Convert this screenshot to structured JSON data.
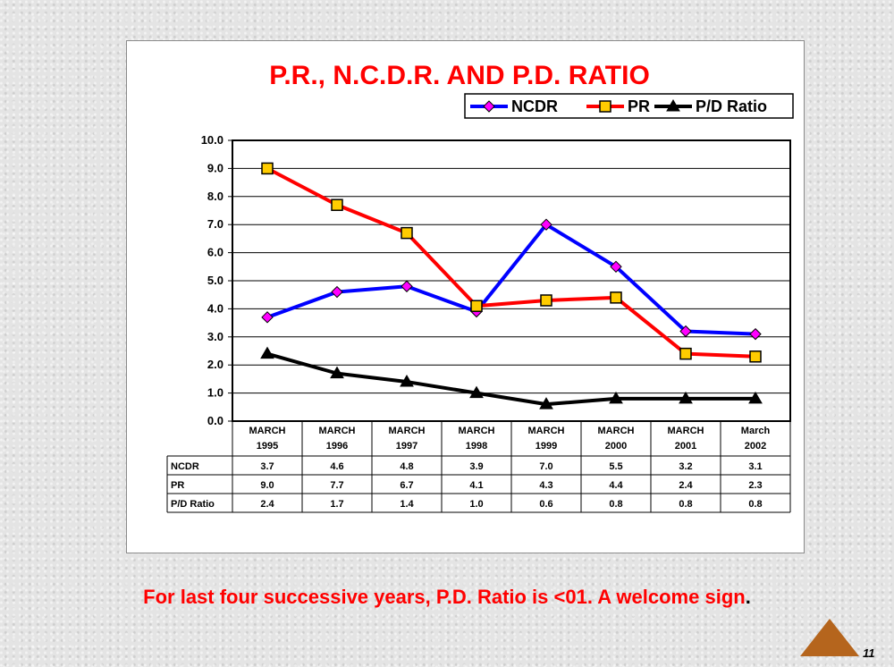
{
  "chart_data": {
    "type": "line",
    "title": "P.R., N.C.D.R. AND P.D. RATIO",
    "categories": [
      [
        "MARCH",
        "1995"
      ],
      [
        "MARCH",
        "1996"
      ],
      [
        "MARCH",
        "1997"
      ],
      [
        "MARCH",
        "1998"
      ],
      [
        "MARCH",
        "1999"
      ],
      [
        "MARCH",
        "2000"
      ],
      [
        "MARCH",
        "2001"
      ],
      [
        "March",
        "2002"
      ]
    ],
    "series": [
      {
        "name": "NCDR",
        "table_label": "NCDR",
        "color": "#0000ff",
        "marker": "diamond",
        "marker_color": "#ff00ff",
        "values": [
          3.7,
          4.6,
          4.8,
          3.9,
          7.0,
          5.5,
          3.2,
          3.1
        ],
        "labels": [
          "3.7",
          "4.6",
          "4.8",
          "3.9",
          "7.0",
          "5.5",
          "3.2",
          "3.1"
        ]
      },
      {
        "name": "PR",
        "table_label": "PR",
        "color": "#ff0000",
        "marker": "square",
        "marker_color": "#ffcc00",
        "values": [
          9.0,
          7.7,
          6.7,
          4.1,
          4.3,
          4.4,
          2.4,
          2.3
        ],
        "labels": [
          "9.0",
          "7.7",
          "6.7",
          "4.1",
          "4.3",
          "4.4",
          "2.4",
          "2.3"
        ]
      },
      {
        "name": "P/D Ratio",
        "table_label": "P/D Ratio",
        "color": "#000000",
        "marker": "triangle",
        "marker_color": "#000000",
        "values": [
          2.4,
          1.7,
          1.4,
          1.0,
          0.6,
          0.8,
          0.8,
          0.8
        ],
        "labels": [
          "2.4",
          "1.7",
          "1.4",
          "1.0",
          "0.6",
          "0.8",
          "0.8",
          "0.8"
        ]
      }
    ],
    "ylim": [
      0,
      10
    ],
    "yticks": [
      "0.0",
      "1.0",
      "2.0",
      "3.0",
      "4.0",
      "5.0",
      "6.0",
      "7.0",
      "8.0",
      "9.0",
      "10.0"
    ],
    "grid": true,
    "legend": "top-right",
    "data_table": true
  },
  "caption": {
    "text": "For last four successive years, P.D. Ratio is <01. A welcome sign",
    "end": "."
  },
  "footer": {
    "page_number": "11",
    "nav_color": "#b5651d"
  }
}
